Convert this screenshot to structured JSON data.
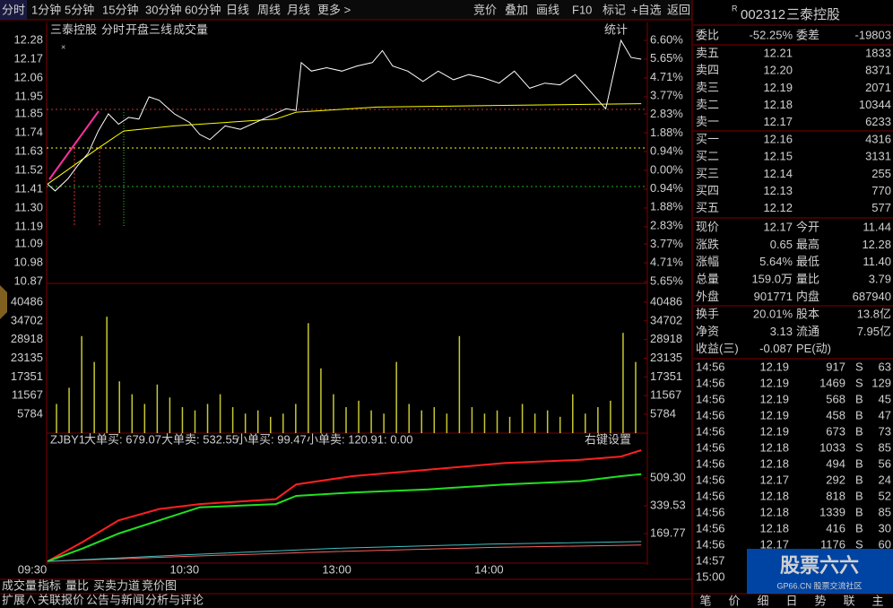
{
  "toolbar": {
    "periods": [
      "分时",
      "1分钟",
      "5分钟",
      "15分钟",
      "30分钟",
      "60分钟",
      "日线",
      "周线",
      "月线",
      "更多 >"
    ],
    "tools": [
      "竞价",
      "叠加",
      "画线",
      "F10",
      "标记",
      "+自选",
      "返回"
    ]
  },
  "chart_header": {
    "items": [
      "三泰控股",
      "分时",
      "开盘三线",
      "成交量"
    ],
    "stats": "统计"
  },
  "price_axis": {
    "prices": [
      12.28,
      12.17,
      12.06,
      11.95,
      11.85,
      11.74,
      11.63,
      11.52,
      11.41,
      {
        "value": 11.3,
        "label": "11.30"
      },
      11.19,
      11.09,
      10.98,
      10.87
    ],
    "percents": [
      "6.60%",
      "5.65%",
      "4.71%",
      "3.77%",
      "2.83%",
      "1.88%",
      "0.94%",
      "0.00%",
      "0.94%",
      "1.88%",
      "2.83%",
      "3.77%",
      "4.71%",
      "5.65%"
    ]
  },
  "price_line": {
    "minutes": [
      6,
      9,
      14,
      18,
      22,
      26,
      30,
      34,
      38,
      42,
      46,
      50,
      56,
      62,
      66,
      70,
      76,
      82,
      88,
      94,
      100,
      104,
      106,
      110,
      116,
      122,
      128,
      134,
      138,
      142,
      148,
      154,
      160,
      166,
      172,
      178,
      184,
      190,
      196,
      202,
      208,
      214,
      220,
      226,
      232,
      236,
      240
    ],
    "prices": [
      11.44,
      11.4,
      11.47,
      11.55,
      11.62,
      11.75,
      11.85,
      11.79,
      11.83,
      11.82,
      11.95,
      11.93,
      11.85,
      11.8,
      11.73,
      11.7,
      11.78,
      11.76,
      11.8,
      11.84,
      11.88,
      11.87,
      12.15,
      12.1,
      12.12,
      12.1,
      12.13,
      12.15,
      12.22,
      12.13,
      12.1,
      12.04,
      12.1,
      12.05,
      12.08,
      12.06,
      12.03,
      12.1,
      12.0,
      12.03,
      12.02,
      12.08,
      11.98,
      11.88,
      12.28,
      12.18,
      12.17
    ],
    "color": "#ffffff"
  },
  "avg_line": {
    "minutes": [
      6,
      26,
      36,
      56,
      96,
      104,
      136,
      186,
      240
    ],
    "prices": [
      11.44,
      11.65,
      11.75,
      11.78,
      11.82,
      11.86,
      11.89,
      11.9,
      11.91
    ],
    "color": "#ffff00"
  },
  "volume": {
    "axis": [
      40486,
      34702,
      28918,
      23135,
      17351,
      11567,
      5784
    ],
    "color": "#c8c832",
    "values": [
      9000,
      14000,
      30000,
      22000,
      36000,
      16000,
      12000,
      9000,
      15000,
      11000,
      8000,
      7000,
      9000,
      12000,
      8000,
      6000,
      7000,
      5000,
      6000,
      9000,
      34000,
      20000,
      12000,
      8000,
      10000,
      7000,
      6000,
      22000,
      9000,
      7000,
      8000,
      6000,
      30000,
      8000,
      6000,
      7000,
      5000,
      9000,
      6000,
      7000,
      5000,
      12000,
      6000,
      8000,
      10000,
      31000,
      22000
    ]
  },
  "indicator": {
    "name": "ZJBY1",
    "tail": ": 0.00",
    "settings": "右键设置",
    "axis": [
      {
        "value": 509.3,
        "label": "509.30"
      },
      339.53,
      169.77
    ],
    "series": [
      {
        "name": "大单买: 679.07",
        "color": "#ff2020",
        "minutes": [
          6,
          20,
          34,
          50,
          66,
          96,
          104,
          126,
          156,
          186,
          216,
          232,
          240
        ],
        "values": [
          0,
          120,
          250,
          320,
          350,
          380,
          470,
          520,
          560,
          600,
          620,
          640,
          679.07
        ]
      },
      {
        "name": "大单卖: 532.55",
        "color": "#20e020",
        "minutes": [
          6,
          20,
          34,
          50,
          66,
          96,
          104,
          126,
          156,
          186,
          216,
          232,
          240
        ],
        "values": [
          0,
          80,
          170,
          250,
          330,
          350,
          400,
          420,
          440,
          470,
          490,
          520,
          532.55
        ]
      },
      {
        "name": "小单买: 99.47",
        "color": "#ff6060",
        "minutes": [
          6,
          60,
          120,
          180,
          240
        ],
        "values": [
          0,
          30,
          60,
          85,
          99.47
        ]
      },
      {
        "name": "小单卖: 120.91",
        "color": "#40c0c0",
        "minutes": [
          6,
          60,
          120,
          180,
          240
        ],
        "values": [
          0,
          40,
          80,
          105,
          120.91
        ]
      }
    ]
  },
  "time_axis": {
    "labels": [
      "09:30",
      "10:30",
      "13:00",
      "14:00"
    ],
    "minutes": [
      0,
      60,
      120,
      180
    ]
  },
  "bottom_tabs": {
    "row1": [
      "成交量",
      "指标",
      "量比",
      "买卖力道",
      "竞价图"
    ],
    "row2": [
      "扩展∧",
      "关联报价",
      "公告与新闻",
      "分析与评论"
    ]
  },
  "quote": {
    "flag": "R",
    "code": "002312",
    "name": "三泰控股",
    "ratio": [
      "委比",
      "-52.25%",
      "委差",
      "-19803"
    ],
    "book": [
      [
        "卖五",
        "12.21",
        "1833"
      ],
      [
        "卖四",
        "12.20",
        "8371"
      ],
      [
        "卖三",
        "12.19",
        "2071"
      ],
      [
        "卖二",
        "12.18",
        "10344"
      ],
      [
        "卖一",
        "12.17",
        "6233"
      ],
      [
        "买一",
        "12.16",
        "4316"
      ],
      [
        "买二",
        "12.15",
        "3131"
      ],
      [
        "买三",
        "12.14",
        "255"
      ],
      [
        "买四",
        "12.13",
        "770"
      ],
      [
        "买五",
        "12.12",
        "577"
      ]
    ],
    "stats": [
      [
        "现价",
        "12.17",
        "今开",
        "11.44"
      ],
      [
        "涨跌",
        "0.65",
        "最高",
        "12.28"
      ],
      [
        "涨幅",
        "5.64%",
        "最低",
        "11.40"
      ],
      [
        "总量",
        "159.0万",
        "量比",
        "3.79"
      ],
      [
        "外盘",
        "901771",
        "内盘",
        "687940"
      ],
      [
        "换手",
        "20.01%",
        "股本",
        "13.8亿"
      ],
      [
        "净资",
        "3.13",
        "流通",
        "7.95亿"
      ],
      [
        "收益(三)",
        "-0.087",
        "PE(动)"
      ]
    ],
    "stat_colors": [
      [
        "#ff3232",
        "#00e600"
      ],
      [
        "#ff3232",
        "#ff3232"
      ],
      [
        "#ff3232",
        "#00e600"
      ],
      [
        "#ffff00",
        "#ff40ff"
      ],
      [
        "#ff3232",
        "#00e600"
      ],
      [
        "#e0e0e0",
        "#e0e0e0"
      ],
      [
        "#e0e0e0",
        "#e0e0e0"
      ],
      [
        "#e0e0e0",
        "#e0e0e0"
      ]
    ],
    "ticks": [
      [
        "14:56",
        "12.19",
        "917",
        "S",
        "63"
      ],
      [
        "14:56",
        "12.19",
        "1469",
        "S",
        "129"
      ],
      [
        "14:56",
        "12.19",
        "568",
        "B",
        "45"
      ],
      [
        "14:56",
        "12.19",
        "458",
        "B",
        "47"
      ],
      [
        "14:56",
        "12.19",
        "673",
        "B",
        "73"
      ],
      [
        "14:56",
        "12.18",
        "1033",
        "S",
        "85"
      ],
      [
        "14:56",
        "12.18",
        "494",
        "B",
        "56"
      ],
      [
        "14:56",
        "12.17",
        "292",
        "B",
        "24"
      ],
      [
        "14:56",
        "12.18",
        "818",
        "B",
        "52"
      ],
      [
        "14:56",
        "12.18",
        "1339",
        "B",
        "85"
      ],
      [
        "14:56",
        "12.18",
        "416",
        "B",
        "30"
      ],
      [
        "14:56",
        "12.17",
        "1176",
        "S",
        "60"
      ],
      [
        "14:57"
      ],
      [
        "15:00"
      ]
    ],
    "tabs": [
      "笔",
      "价",
      "细",
      "日",
      "势",
      "联",
      "主"
    ]
  },
  "watermark": [
    "股票六六",
    "GP66.CN 股票交流社区"
  ]
}
